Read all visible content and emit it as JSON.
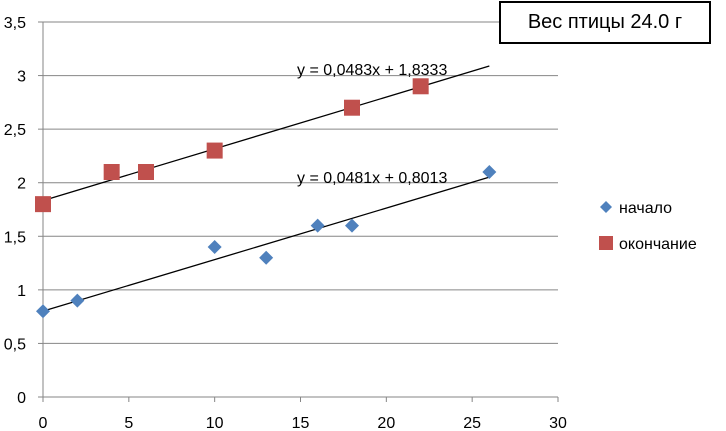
{
  "chart_data": {
    "type": "scatter",
    "title": "Вес птицы 24.0 г",
    "xlabel": "",
    "ylabel": "",
    "xlim": [
      0,
      30
    ],
    "ylim": [
      0,
      3.5
    ],
    "x_ticks": [
      0,
      5,
      10,
      15,
      20,
      25,
      30
    ],
    "y_ticks": [
      0,
      0.5,
      1,
      1.5,
      2,
      2.5,
      3,
      3.5
    ],
    "x_tick_labels": [
      "0",
      "5",
      "10",
      "15",
      "20",
      "25",
      "30"
    ],
    "y_tick_labels": [
      "0",
      "0,5",
      "1",
      "1,5",
      "2",
      "2,5",
      "3",
      "3,5"
    ],
    "grid": "horizontal",
    "legend_position": "right",
    "series": [
      {
        "name": "начало",
        "marker": "diamond",
        "color": "#4f81bd",
        "x": [
          0,
          2,
          10,
          13,
          16,
          18,
          26
        ],
        "y": [
          0.8,
          0.9,
          1.4,
          1.3,
          1.6,
          1.6,
          2.1
        ],
        "trendline": {
          "slope": 0.0481,
          "intercept": 0.8013,
          "x_range": [
            0,
            26
          ],
          "equation": "y = 0,0481x + 0,8013"
        }
      },
      {
        "name": "окончание",
        "marker": "square",
        "color": "#c0504d",
        "x": [
          0,
          4,
          6,
          10,
          18,
          22
        ],
        "y": [
          1.8,
          2.1,
          2.1,
          2.3,
          2.7,
          2.9
        ],
        "trendline": {
          "slope": 0.0483,
          "intercept": 1.8333,
          "x_range": [
            0,
            26
          ],
          "equation": "y = 0,0483x + 1,8333"
        }
      }
    ]
  }
}
